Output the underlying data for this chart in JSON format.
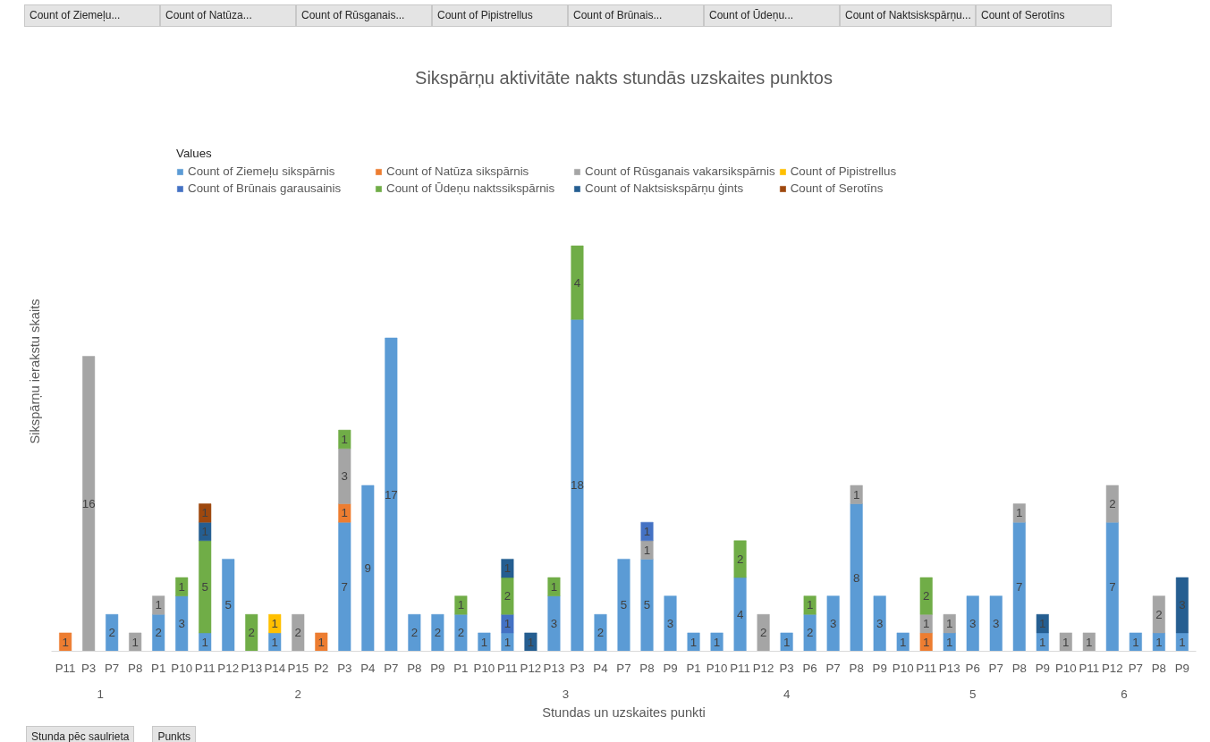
{
  "chart_data": {
    "type": "bar",
    "stacked": true,
    "data_labels": true,
    "grid": false,
    "legend": "top",
    "legend_title": "Values",
    "title": "Sikspārņu aktivitāte nakts stundās uzskaites punktos",
    "xlabel": "Stundas un uzskaites punkti",
    "ylabel": "Sikspārņu ierakstu skaits",
    "categories": [
      "P11",
      "P3",
      "P7",
      "P8",
      "P1",
      "P10",
      "P11",
      "P12",
      "P13",
      "P14",
      "P15",
      "P2",
      "P3",
      "P4",
      "P7",
      "P8",
      "P9",
      "P1",
      "P10",
      "P11",
      "P12",
      "P13",
      "P3",
      "P4",
      "P7",
      "P8",
      "P9",
      "P1",
      "P10",
      "P11",
      "P12",
      "P3",
      "P6",
      "P7",
      "P8",
      "P9",
      "P10",
      "P11",
      "P13",
      "P6",
      "P7",
      "P8",
      "P9",
      "P10",
      "P11",
      "P12",
      "P7",
      "P8",
      "P9"
    ],
    "series": [
      {
        "name": "Count of Ziemeļu sikspārnis",
        "color": "#5b9bd5",
        "values": [
          null,
          null,
          2,
          null,
          2,
          3,
          1,
          5,
          null,
          1,
          null,
          null,
          7,
          9,
          17,
          2,
          2,
          2,
          1,
          1,
          null,
          3,
          18,
          2,
          5,
          5,
          3,
          1,
          1,
          4,
          null,
          1,
          2,
          3,
          8,
          3,
          1,
          null,
          1,
          3,
          3,
          7,
          1,
          null,
          null,
          7,
          1,
          1,
          1
        ]
      },
      {
        "name": "Count of Natūza sikspārnis",
        "color": "#ed7d31",
        "values": [
          1,
          null,
          null,
          null,
          null,
          null,
          null,
          null,
          null,
          null,
          null,
          1,
          1,
          null,
          null,
          null,
          null,
          null,
          null,
          null,
          null,
          null,
          null,
          null,
          null,
          null,
          null,
          null,
          null,
          null,
          null,
          null,
          null,
          null,
          null,
          null,
          null,
          1,
          null,
          null,
          null,
          null,
          null,
          null,
          null,
          null,
          null,
          null,
          null
        ]
      },
      {
        "name": "Count of Rūsganais vakarsikspārnis",
        "color": "#a5a5a5",
        "values": [
          null,
          16,
          null,
          1,
          1,
          null,
          null,
          null,
          null,
          null,
          2,
          null,
          3,
          null,
          null,
          null,
          null,
          null,
          null,
          null,
          null,
          null,
          null,
          null,
          null,
          1,
          null,
          null,
          null,
          null,
          2,
          null,
          null,
          null,
          1,
          null,
          null,
          1,
          1,
          null,
          null,
          1,
          null,
          1,
          1,
          2,
          null,
          2,
          null
        ]
      },
      {
        "name": "Count of Pipistrellus",
        "color": "#ffc000",
        "values": [
          null,
          null,
          null,
          null,
          null,
          null,
          null,
          null,
          null,
          1,
          null,
          null,
          null,
          null,
          null,
          null,
          null,
          null,
          null,
          null,
          null,
          null,
          null,
          null,
          null,
          null,
          null,
          null,
          null,
          null,
          null,
          null,
          null,
          null,
          null,
          null,
          null,
          null,
          null,
          null,
          null,
          null,
          null,
          null,
          null,
          null,
          null,
          null,
          null
        ]
      },
      {
        "name": "Count of Brūnais garausainis",
        "color": "#4472c4",
        "values": [
          null,
          null,
          null,
          null,
          null,
          null,
          null,
          null,
          null,
          null,
          null,
          null,
          null,
          null,
          null,
          null,
          null,
          null,
          null,
          1,
          null,
          null,
          null,
          null,
          null,
          1,
          null,
          null,
          null,
          null,
          null,
          null,
          null,
          null,
          null,
          null,
          null,
          null,
          null,
          null,
          null,
          null,
          null,
          null,
          null,
          null,
          null,
          null,
          null
        ]
      },
      {
        "name": "Count of Ūdeņu naktssikspārnis",
        "color": "#70ad47",
        "values": [
          null,
          null,
          null,
          null,
          null,
          1,
          5,
          null,
          2,
          null,
          null,
          null,
          1,
          null,
          null,
          null,
          null,
          1,
          null,
          2,
          null,
          1,
          4,
          null,
          null,
          null,
          null,
          null,
          null,
          2,
          null,
          null,
          1,
          null,
          null,
          null,
          null,
          2,
          null,
          null,
          null,
          null,
          null,
          null,
          null,
          null,
          null,
          null,
          null
        ]
      },
      {
        "name": "Count of Naktsiskspārņu ģints",
        "color": "#255e91",
        "values": [
          null,
          null,
          null,
          null,
          null,
          null,
          1,
          null,
          null,
          null,
          null,
          null,
          null,
          null,
          null,
          null,
          null,
          null,
          null,
          1,
          1,
          null,
          null,
          null,
          null,
          null,
          null,
          null,
          null,
          null,
          null,
          null,
          null,
          null,
          null,
          null,
          null,
          null,
          null,
          null,
          null,
          null,
          1,
          null,
          null,
          null,
          null,
          null,
          3
        ]
      },
      {
        "name": "Count of Serotīns",
        "color": "#9e480e",
        "values": [
          null,
          null,
          null,
          null,
          null,
          null,
          1,
          null,
          null,
          null,
          null,
          null,
          null,
          null,
          null,
          null,
          null,
          null,
          null,
          null,
          null,
          null,
          null,
          null,
          null,
          null,
          null,
          null,
          null,
          null,
          null,
          null,
          null,
          null,
          null,
          null,
          null,
          null,
          null,
          null,
          null,
          null,
          null,
          null,
          null,
          null,
          null,
          null,
          null
        ]
      }
    ],
    "annotations": [
      "Count of Ziemeļu...",
      "Count of Natūza...",
      "Count of Rūsganais...",
      "Count of Pipistrellus",
      "Count of Brūnais...",
      "Count of Ūdeņu...",
      "Count of Naktsiskspārņu...",
      "Count of Serotīns",
      "Stunda pēc saulrieta",
      "Punkts",
      "1",
      "2",
      "3",
      "4",
      "5",
      "6"
    ]
  }
}
